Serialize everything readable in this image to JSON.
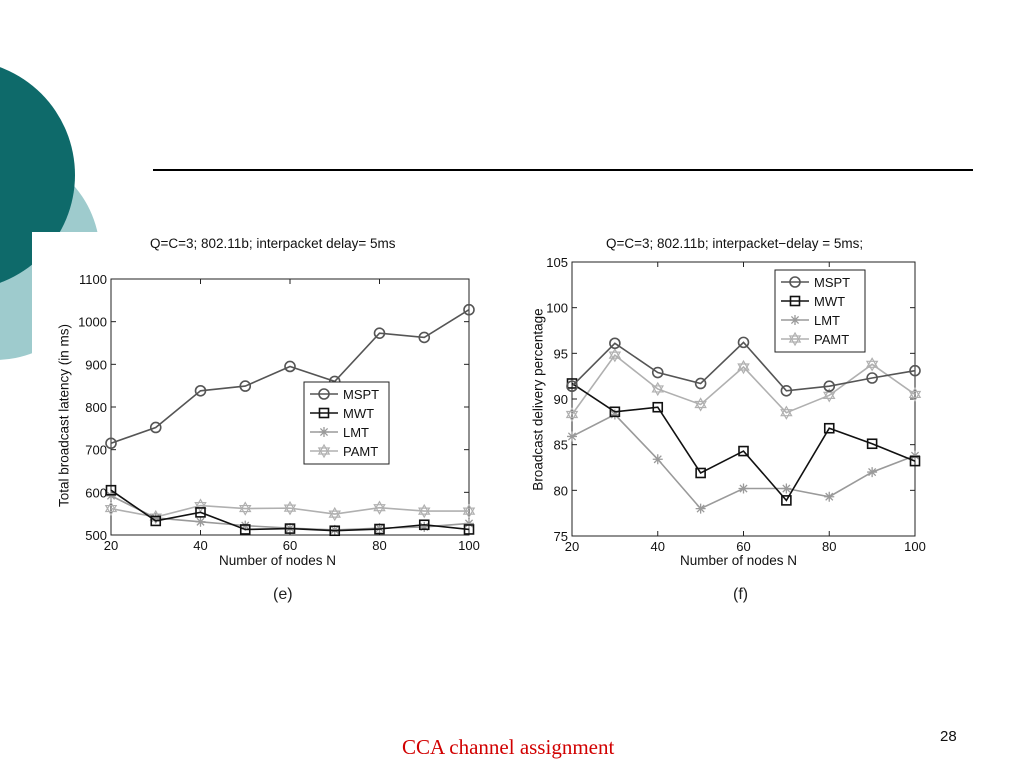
{
  "slide": {
    "footer": "CCA  channel assignment",
    "page_number": "28",
    "colors": {
      "teal_dark": "#0e6a6a",
      "teal_light": "#9ecbcd",
      "footer_red": "#d10000"
    }
  },
  "chart_data": [
    {
      "type": "line",
      "title": "Q=C=3; 802.11b; interpacket delay= 5ms",
      "xlabel": "Number of nodes N",
      "ylabel": "Total broadcast latency (in ms)",
      "caption": "(e)",
      "xlim": [
        20,
        100
      ],
      "ylim": [
        500,
        1100
      ],
      "xticks": [
        20,
        40,
        60,
        80,
        100
      ],
      "yticks": [
        500,
        600,
        700,
        800,
        900,
        1000,
        1100
      ],
      "grid": false,
      "legend_position": "middle-right",
      "x": [
        20,
        30,
        40,
        50,
        60,
        70,
        80,
        90,
        100
      ],
      "series": [
        {
          "name": "MSPT",
          "marker": "circle",
          "color": "#555555",
          "values": [
            715,
            752,
            838,
            849,
            895,
            860,
            973,
            963,
            1028
          ]
        },
        {
          "name": "MWT",
          "marker": "square",
          "color": "#111111",
          "values": [
            605,
            533,
            553,
            513,
            515,
            510,
            514,
            524,
            513
          ]
        },
        {
          "name": "LMT",
          "marker": "asterisk",
          "color": "#9a9a9a",
          "values": [
            592,
            540,
            531,
            522,
            516,
            512,
            516,
            519,
            527
          ]
        },
        {
          "name": "PAMT",
          "marker": "star",
          "color": "#b0b0b0",
          "values": [
            562,
            542,
            569,
            562,
            563,
            549,
            564,
            556,
            556
          ]
        }
      ]
    },
    {
      "type": "line",
      "title": "Q=C=3; 802.11b; interpacket−delay = 5ms;",
      "xlabel": "Number of nodes N",
      "ylabel": "Broadcast delivery percentage",
      "caption": "(f)",
      "xlim": [
        20,
        100
      ],
      "ylim": [
        75,
        105
      ],
      "xticks": [
        20,
        40,
        60,
        80,
        100
      ],
      "yticks": [
        75,
        80,
        85,
        90,
        95,
        100,
        105
      ],
      "grid": false,
      "legend_position": "top-right",
      "x": [
        20,
        30,
        40,
        50,
        60,
        70,
        80,
        90,
        100
      ],
      "series": [
        {
          "name": "MSPT",
          "marker": "circle",
          "color": "#555555",
          "values": [
            91.4,
            96.1,
            92.9,
            91.7,
            96.2,
            90.9,
            91.4,
            92.3,
            93.1
          ]
        },
        {
          "name": "MWT",
          "marker": "square",
          "color": "#111111",
          "values": [
            91.7,
            88.6,
            89.1,
            81.9,
            84.3,
            78.9,
            86.8,
            85.1,
            83.2
          ]
        },
        {
          "name": "LMT",
          "marker": "asterisk",
          "color": "#9a9a9a",
          "values": [
            85.9,
            88.3,
            83.4,
            78.0,
            80.2,
            80.2,
            79.3,
            82.0,
            83.8
          ]
        },
        {
          "name": "PAMT",
          "marker": "star",
          "color": "#b0b0b0",
          "values": [
            88.3,
            94.8,
            91.1,
            89.4,
            93.5,
            88.5,
            90.4,
            93.8,
            90.5
          ]
        }
      ]
    }
  ]
}
